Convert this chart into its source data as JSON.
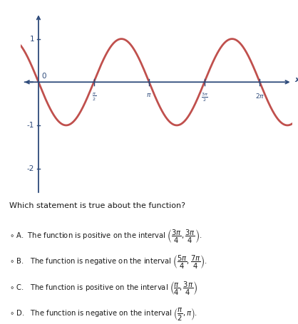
{
  "curve_color": "#c0504d",
  "bg_color": "#dce6f1",
  "grid_color": "#b8c9dc",
  "axis_color": "#2d4a7a",
  "xlim": [
    -0.5,
    7.2
  ],
  "ylim": [
    -2.6,
    1.6
  ],
  "question": "Which statement is true about the function?",
  "option_A": "The function is positive on the interval $\\left(\\dfrac{3\\pi}{4},\\dfrac{3\\pi}{4}\\right)$.",
  "option_B": "The function is negative on the interval $\\left(\\dfrac{5\\pi}{4},\\dfrac{7\\pi}{4}\\right)$.",
  "option_C": "The function is positive on the interval $\\left(\\dfrac{\\pi}{4},\\dfrac{3\\pi}{4}\\right)$",
  "option_D": "The function is negative on the interval $\\left(\\dfrac{\\pi}{2},\\pi\\right)$."
}
